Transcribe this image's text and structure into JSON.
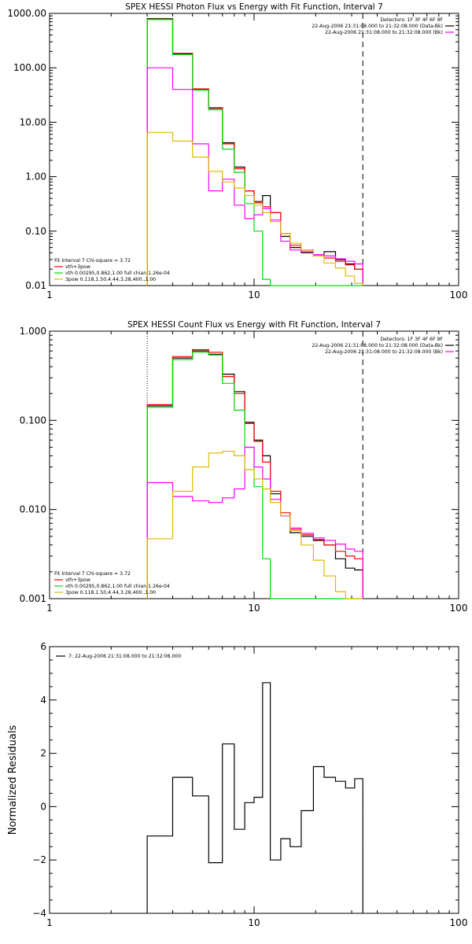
{
  "chart_data": [
    {
      "type": "line",
      "title": "SPEX HESSI Photon Flux vs Energy with Fit Function, Interval 7",
      "xscale": "log",
      "yscale": "log",
      "xlim": [
        1,
        100
      ],
      "ylim": [
        0.01,
        1000
      ],
      "xticks": [
        {
          "v": 1,
          "label": "1"
        },
        {
          "v": 10,
          "label": "10"
        },
        {
          "v": 100,
          "label": "100"
        }
      ],
      "yticks": [
        {
          "v": 0.01,
          "label": "0.01"
        },
        {
          "v": 0.1,
          "label": "0.10"
        },
        {
          "v": 1,
          "label": "1.00"
        },
        {
          "v": 10,
          "label": "10.00"
        },
        {
          "v": 100,
          "label": "100.00"
        },
        {
          "v": 1000,
          "label": "1000.00"
        }
      ],
      "vlines": [
        {
          "x": 3.0,
          "style": "dotted"
        },
        {
          "x": 34.0,
          "style": "dashed"
        }
      ],
      "info_lines": [
        "Detectors: 1F 3F 4F 6F 9F",
        "22-Aug-2006 21:31:08.000 to 21:32:08.000 (Data-Bk)",
        "22-Aug-2006 21:31:08.000 to 21:32:08.000 (Bk)"
      ],
      "fit_title": "Fit Interval 7   Chi-square = 3.72",
      "fit_labels": [
        "vth+3pow",
        "vth 0.00295,0.862,1.00   full chian 1.26e-04",
        "3pow 0.118,1.50,4.44,3.28,400.,1.00"
      ],
      "edges": [
        3,
        4,
        5,
        6,
        7,
        8,
        9,
        10,
        11,
        12,
        13.5,
        15,
        17,
        19.5,
        22,
        25,
        28,
        31,
        34
      ],
      "series": [
        {
          "color": "#000000",
          "values": [
            800,
            180,
            40,
            18,
            4.2,
            1.5,
            0.55,
            0.35,
            0.45,
            0.22,
            0.08,
            0.05,
            0.04,
            0.035,
            0.042,
            0.03,
            0.025,
            0.02
          ]
        },
        {
          "color": "#ff0000",
          "values": [
            780,
            185,
            41,
            18.5,
            4.0,
            1.4,
            0.55,
            0.33,
            0.28,
            0.22,
            0.09,
            0.055,
            0.045,
            0.037,
            0.032,
            0.028,
            0.024,
            0.02
          ]
        },
        {
          "color": "#00dd00",
          "values": [
            770,
            175,
            39,
            17,
            3.2,
            1.2,
            0.32,
            0.1,
            0.013,
            0.009,
            0.009,
            0.009,
            0.009,
            0.009,
            0.009,
            0.009,
            0.009,
            0.009
          ]
        },
        {
          "color": "#ff00ff",
          "values": [
            100,
            40,
            4,
            0.55,
            0.9,
            0.3,
            0.17,
            0.2,
            0.26,
            0.16,
            0.065,
            0.045,
            0.042,
            0.037,
            0.035,
            0.031,
            0.028,
            0.025
          ]
        },
        {
          "color": "#ddbb00",
          "values": [
            6.5,
            4.5,
            2.3,
            1.25,
            0.8,
            0.62,
            0.45,
            0.3,
            0.22,
            0.15,
            0.09,
            0.06,
            0.045,
            0.035,
            0.026,
            0.021,
            0.015,
            0.011
          ]
        }
      ]
    },
    {
      "type": "line",
      "title": "SPEX HESSI Count Flux vs Energy with Fit Function, Interval 7",
      "xscale": "log",
      "yscale": "log",
      "xlim": [
        1,
        100
      ],
      "ylim": [
        0.001,
        1
      ],
      "xticks": [
        {
          "v": 1,
          "label": "1"
        },
        {
          "v": 10,
          "label": "10"
        },
        {
          "v": 100,
          "label": "100"
        }
      ],
      "yticks": [
        {
          "v": 0.001,
          "label": "0.001"
        },
        {
          "v": 0.01,
          "label": "0.010"
        },
        {
          "v": 0.1,
          "label": "0.100"
        },
        {
          "v": 1,
          "label": "1.000"
        }
      ],
      "vlines": [
        {
          "x": 3.0,
          "style": "dotted"
        },
        {
          "x": 34.0,
          "style": "dashed"
        }
      ],
      "info_lines": [
        "Detectors: 1F 3F 4F 6F 9F",
        "22-Aug-2006 21:31:08.000 to 21:32:08.000 (Data-Bk)",
        "22-Aug-2006 21:31:08.000 to 21:32:08.000 (Bk)"
      ],
      "fit_title": "Fit Interval 7   Chi-square = 3.72",
      "fit_labels": [
        "vth+3pow",
        "vth 0.00295,0.862,1.00   full chian 1.26e-04",
        "3pow 0.118,1.50,4.44,3.28,400.,1.00"
      ],
      "edges": [
        3,
        4,
        5,
        6,
        7,
        8,
        9,
        10,
        11,
        12,
        13.5,
        15,
        17,
        19.5,
        22,
        25,
        28,
        31,
        34
      ],
      "series": [
        {
          "color": "#000000",
          "values": [
            0.145,
            0.5,
            0.6,
            0.55,
            0.33,
            0.21,
            0.095,
            0.06,
            0.04,
            0.015,
            0.0085,
            0.0055,
            0.005,
            0.0045,
            0.004,
            0.0028,
            0.0022,
            0.0021
          ]
        },
        {
          "color": "#ff0000",
          "values": [
            0.15,
            0.52,
            0.62,
            0.58,
            0.31,
            0.2,
            0.092,
            0.058,
            0.034,
            0.016,
            0.0092,
            0.006,
            0.0052,
            0.0046,
            0.004,
            0.0034,
            0.003,
            0.0028
          ]
        },
        {
          "color": "#00dd00",
          "values": [
            0.14,
            0.48,
            0.58,
            0.54,
            0.26,
            0.13,
            0.05,
            0.018,
            0.0028,
            0.0009,
            0.0009,
            0.0009,
            0.0009,
            0.0009,
            0.0009,
            0.0009,
            0.0009,
            0.0009
          ]
        },
        {
          "color": "#ff00ff",
          "values": [
            0.02,
            0.014,
            0.0125,
            0.012,
            0.0135,
            0.017,
            0.05,
            0.03,
            0.022,
            0.013,
            0.0085,
            0.0062,
            0.0054,
            0.0048,
            0.0045,
            0.0041,
            0.0036,
            0.0034
          ]
        },
        {
          "color": "#ddbb00",
          "values": [
            0.0047,
            0.016,
            0.03,
            0.043,
            0.045,
            0.04,
            0.028,
            0.022,
            0.017,
            0.012,
            0.0085,
            0.0058,
            0.004,
            0.0027,
            0.0018,
            0.0012,
            0.0009,
            0.0009
          ]
        }
      ]
    },
    {
      "type": "line",
      "title": "",
      "xscale": "log",
      "yscale": "linear",
      "xlim": [
        1,
        100
      ],
      "ylim": [
        -4,
        6
      ],
      "ylabel": "Normalized Residuals",
      "xticks": [
        {
          "v": 1,
          "label": "1"
        },
        {
          "v": 10,
          "label": "10"
        },
        {
          "v": 100,
          "label": "100"
        }
      ],
      "yticks": [
        {
          "v": -4,
          "label": "−4"
        },
        {
          "v": -2,
          "label": "−2"
        },
        {
          "v": 0,
          "label": "0"
        },
        {
          "v": 2,
          "label": "2"
        },
        {
          "v": 4,
          "label": "4"
        },
        {
          "v": 6,
          "label": "6"
        }
      ],
      "legend_label": "7: 22-Aug-2006 21:31:08.000 to 21:32:08.000",
      "edges": [
        3,
        4,
        5,
        6,
        7,
        8,
        9,
        10,
        11,
        12,
        13.5,
        15,
        17,
        19.5,
        22,
        25,
        28,
        31,
        34
      ],
      "series": [
        {
          "color": "#000000",
          "values": [
            -1.1,
            1.1,
            0.4,
            -2.1,
            2.35,
            -0.85,
            0.15,
            0.35,
            4.65,
            -2.0,
            -1.2,
            -1.5,
            -0.15,
            1.5,
            1.1,
            0.95,
            0.7,
            1.05
          ]
        }
      ]
    }
  ]
}
